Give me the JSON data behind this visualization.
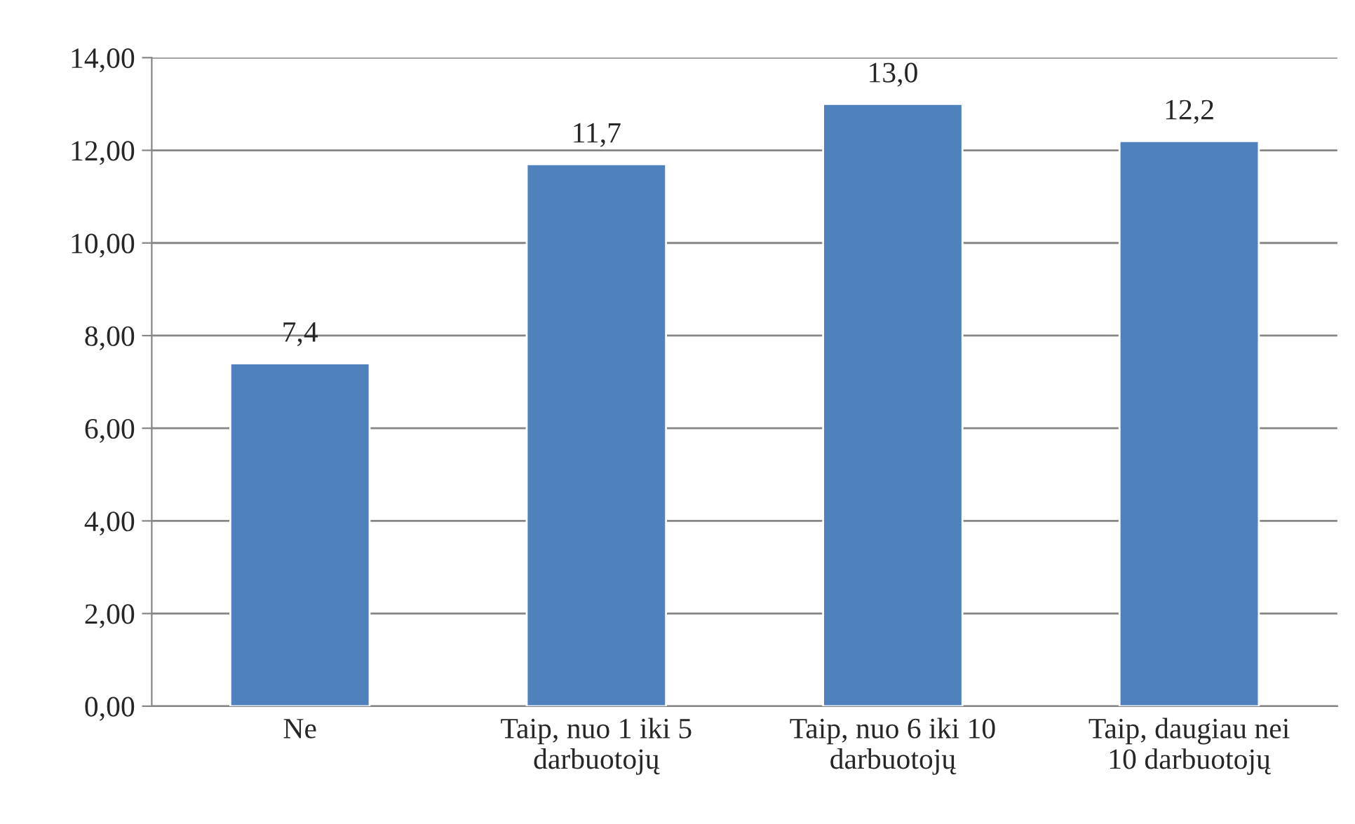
{
  "chart_data": {
    "type": "bar",
    "categories": [
      "Ne",
      "Taip, nuo 1 iki 5\ndarbuotojų",
      "Taip, nuo 6 iki 10\ndarbuotojų",
      "Taip, daugiau nei\n10 darbuotojų"
    ],
    "values": [
      7.4,
      11.7,
      13.0,
      12.2
    ],
    "value_labels": [
      "7,4",
      "11,7",
      "13,0",
      "12,2"
    ],
    "color": "#4f81bd",
    "ylim": [
      0,
      14
    ],
    "yticks": [
      {
        "value": 0,
        "label": "0,00"
      },
      {
        "value": 2,
        "label": "2,00"
      },
      {
        "value": 4,
        "label": "4,00"
      },
      {
        "value": 6,
        "label": "6,00"
      },
      {
        "value": 8,
        "label": "8,00"
      },
      {
        "value": 10,
        "label": "10,00"
      },
      {
        "value": 12,
        "label": "12,00"
      },
      {
        "value": 14,
        "label": "14,00"
      }
    ],
    "grid": "y",
    "legend": false
  }
}
